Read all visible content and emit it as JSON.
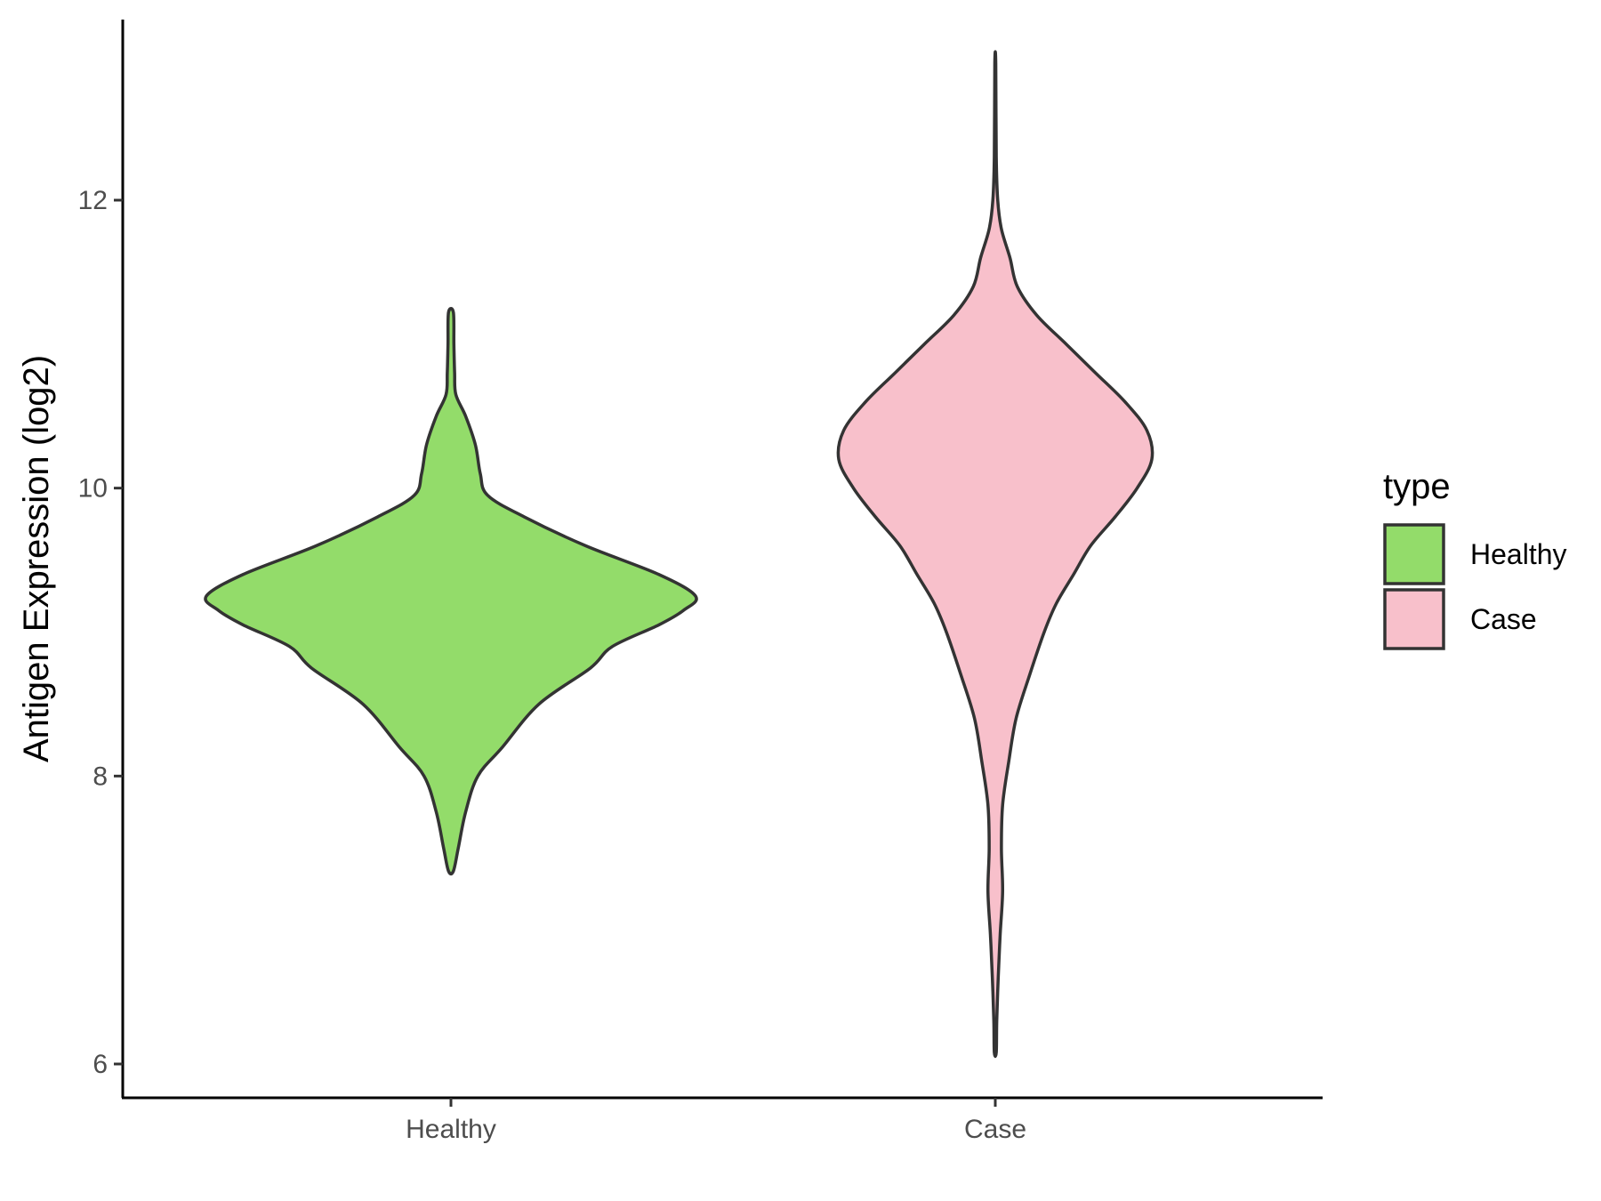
{
  "chart_data": {
    "type": "violin",
    "title": "",
    "xlabel": "",
    "ylabel": "Antigen Expression (log2)",
    "ylim": [
      5.75,
      13.5
    ],
    "yticks": [
      6,
      8,
      10,
      12
    ],
    "categories": [
      "Healthy",
      "Case"
    ],
    "grid": false,
    "legend": {
      "title": "type",
      "position": "right",
      "entries": [
        {
          "label": "Healthy",
          "color": "#93dc6a"
        },
        {
          "label": "Case",
          "color": "#f8c0cb"
        }
      ]
    },
    "outline_color": "#333333",
    "series": [
      {
        "category": "Healthy",
        "color": "#93dc6a",
        "min": 7.34,
        "max": 11.22,
        "density": [
          [
            7.34,
            0.01
          ],
          [
            7.5,
            0.03
          ],
          [
            7.75,
            0.06
          ],
          [
            8.0,
            0.11
          ],
          [
            8.2,
            0.21
          ],
          [
            8.5,
            0.36
          ],
          [
            8.75,
            0.57
          ],
          [
            8.9,
            0.66
          ],
          [
            9.05,
            0.85
          ],
          [
            9.15,
            0.95
          ],
          [
            9.25,
            1.0
          ],
          [
            9.4,
            0.85
          ],
          [
            9.6,
            0.55
          ],
          [
            9.8,
            0.3
          ],
          [
            9.95,
            0.15
          ],
          [
            10.1,
            0.12
          ],
          [
            10.3,
            0.1
          ],
          [
            10.5,
            0.06
          ],
          [
            10.65,
            0.02
          ],
          [
            10.8,
            0.015
          ],
          [
            11.0,
            0.012
          ],
          [
            11.22,
            0.01
          ]
        ]
      },
      {
        "category": "Case",
        "color": "#f8c0cb",
        "min": 6.08,
        "max": 12.95,
        "density": [
          [
            6.08,
            0.004
          ],
          [
            6.3,
            0.006
          ],
          [
            6.6,
            0.012
          ],
          [
            6.9,
            0.02
          ],
          [
            7.2,
            0.03
          ],
          [
            7.5,
            0.025
          ],
          [
            7.8,
            0.03
          ],
          [
            8.1,
            0.055
          ],
          [
            8.4,
            0.085
          ],
          [
            8.7,
            0.14
          ],
          [
            9.0,
            0.2
          ],
          [
            9.2,
            0.25
          ],
          [
            9.4,
            0.32
          ],
          [
            9.6,
            0.39
          ],
          [
            9.8,
            0.49
          ],
          [
            10.0,
            0.58
          ],
          [
            10.2,
            0.64
          ],
          [
            10.4,
            0.62
          ],
          [
            10.6,
            0.53
          ],
          [
            10.8,
            0.41
          ],
          [
            11.0,
            0.29
          ],
          [
            11.2,
            0.17
          ],
          [
            11.4,
            0.09
          ],
          [
            11.6,
            0.06
          ],
          [
            11.8,
            0.025
          ],
          [
            12.0,
            0.01
          ],
          [
            12.3,
            0.004
          ],
          [
            12.95,
            0.002
          ]
        ]
      }
    ]
  }
}
